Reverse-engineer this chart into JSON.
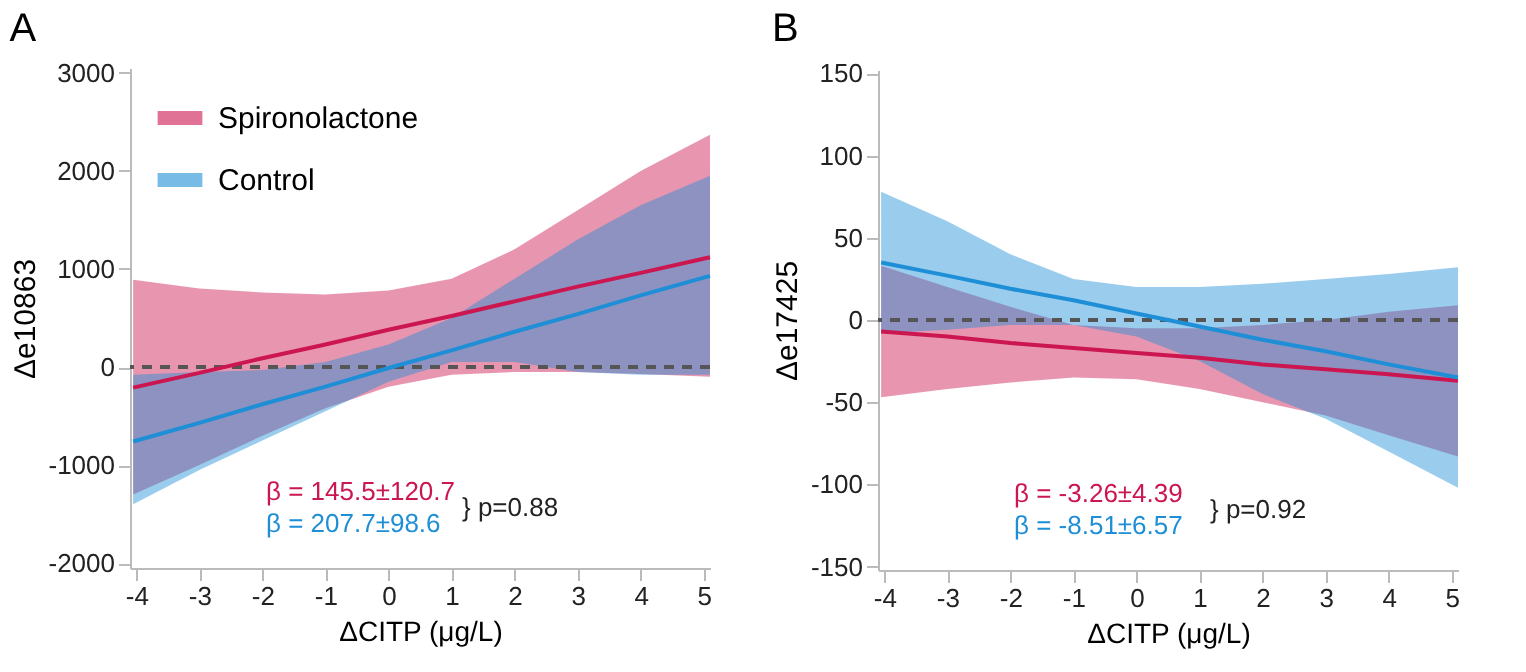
{
  "chart_data": [
    {
      "type": "line",
      "title": "A",
      "xlabel": "ΔCITP (μg/L)",
      "ylabel": "Δe10863",
      "x": [
        -4.05,
        -3,
        -2,
        -1,
        0,
        1,
        2,
        3,
        4,
        5.1
      ],
      "xlim": [
        -4.1,
        5.1
      ],
      "xticks": [
        -4,
        -3,
        -2,
        -1,
        0,
        1,
        2,
        3,
        4,
        5
      ],
      "ylim": [
        -2050,
        3050
      ],
      "yticks": [
        -2000,
        -1000,
        0,
        1000,
        2000,
        3000
      ],
      "legend": "top left",
      "series": [
        {
          "name": "Spironolactone",
          "color": "#cc1650",
          "values": [
            -210,
            -60,
            90,
            230,
            380,
            520,
            670,
            820,
            960,
            1120
          ],
          "lower": [
            -1300,
            -1000,
            -700,
            -420,
            -200,
            -80,
            -50,
            -50,
            -70,
            -100
          ],
          "upper": [
            890,
            800,
            760,
            740,
            780,
            900,
            1200,
            1600,
            2000,
            2370
          ]
        },
        {
          "name": "Control",
          "color": "#1e8fd6",
          "values": [
            -760,
            -570,
            -380,
            -200,
            -10,
            170,
            360,
            540,
            730,
            930
          ],
          "lower": [
            -1400,
            -1050,
            -750,
            -450,
            -150,
            50,
            50,
            -50,
            -80,
            -80
          ],
          "upper": [
            -80,
            -50,
            -30,
            50,
            230,
            500,
            900,
            1300,
            1650,
            1950
          ]
        }
      ],
      "ref_lines": [
        {
          "axis": "y",
          "value": 0,
          "color": "#555555",
          "line_style": "dashed"
        }
      ],
      "annotations": [
        "β = 145.5±120.7",
        "β = 207.7±98.6",
        "} p=0.88"
      ]
    },
    {
      "type": "line",
      "title": "B",
      "xlabel": "ΔCITP (μg/L)",
      "ylabel": "Δe17425",
      "x": [
        -4.05,
        -3,
        -2,
        -1,
        0,
        1,
        2,
        3,
        4,
        5.1
      ],
      "xlim": [
        -4.1,
        5.1
      ],
      "xticks": [
        -4,
        -3,
        -2,
        -1,
        0,
        1,
        2,
        3,
        4,
        5
      ],
      "ylim": [
        -152,
        152
      ],
      "yticks": [
        -150,
        -100,
        -50,
        0,
        50,
        100,
        150
      ],
      "series": [
        {
          "color": "#cc1650",
          "values": [
            -7,
            -10,
            -14,
            -17,
            -20,
            -23,
            -27,
            -30,
            -33,
            -37
          ],
          "lower": [
            -47,
            -42,
            -38,
            -35,
            -36,
            -42,
            -50,
            -58,
            -70,
            -83
          ],
          "upper": [
            33,
            20,
            8,
            -3,
            -5,
            -5,
            -3,
            0,
            5,
            9
          ]
        },
        {
          "color": "#1e8fd6",
          "values": [
            35,
            27,
            19,
            12,
            4,
            -4,
            -12,
            -19,
            -27,
            -35
          ],
          "lower": [
            -8,
            -6,
            -3,
            -3,
            -10,
            -25,
            -45,
            -60,
            -80,
            -102
          ],
          "upper": [
            78,
            60,
            40,
            25,
            20,
            20,
            22,
            25,
            28,
            32
          ]
        }
      ],
      "ref_lines": [
        {
          "axis": "y",
          "value": 0,
          "color": "#555555",
          "line_style": "dashed"
        }
      ],
      "annotations": [
        "β = -3.26±4.39",
        "β = -8.51±6.57",
        "} p=0.92"
      ]
    }
  ]
}
